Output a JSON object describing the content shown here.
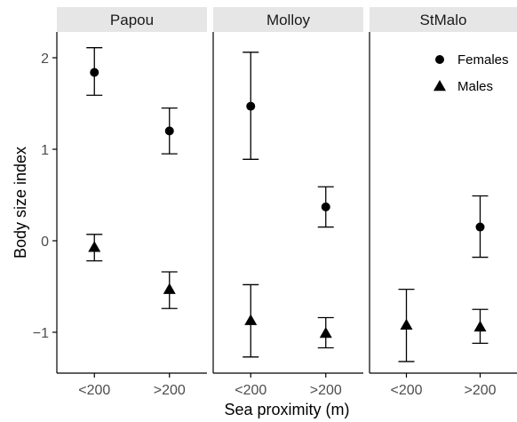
{
  "chart_data": {
    "type": "scatter",
    "subtype": "point-range faceted",
    "xlabel": "Sea proximity (m)",
    "ylabel": "Body size index",
    "categories": [
      "<200",
      ">200"
    ],
    "ylim": [
      -1.5,
      2.35
    ],
    "y_ticks": [
      2,
      1,
      0,
      -1
    ],
    "y_tick_labels": [
      "2",
      "1",
      "0",
      "−1"
    ],
    "grid": false,
    "legend_position": "top-right",
    "facets": [
      {
        "name": "Papou",
        "series": [
          {
            "name": "Females",
            "marker": "circle",
            "points": [
              {
                "x": "<200",
                "y": 1.84,
                "ymin": 1.59,
                "ymax": 2.11
              },
              {
                "x": ">200",
                "y": 1.2,
                "ymin": 0.95,
                "ymax": 1.45
              }
            ]
          },
          {
            "name": "Males",
            "marker": "triangle",
            "points": [
              {
                "x": "<200",
                "y": -0.07,
                "ymin": -0.22,
                "ymax": 0.07
              },
              {
                "x": ">200",
                "y": -0.53,
                "ymin": -0.74,
                "ymax": -0.34
              }
            ]
          }
        ]
      },
      {
        "name": "Molloy",
        "series": [
          {
            "name": "Females",
            "marker": "circle",
            "points": [
              {
                "x": "<200",
                "y": 1.47,
                "ymin": 0.89,
                "ymax": 2.06
              },
              {
                "x": ">200",
                "y": 0.37,
                "ymin": 0.15,
                "ymax": 0.59
              }
            ]
          },
          {
            "name": "Males",
            "marker": "triangle",
            "points": [
              {
                "x": "<200",
                "y": -0.87,
                "ymin": -1.27,
                "ymax": -0.48
              },
              {
                "x": ">200",
                "y": -1.01,
                "ymin": -1.17,
                "ymax": -0.84
              }
            ]
          }
        ]
      },
      {
        "name": "StMalo",
        "series": [
          {
            "name": "Females",
            "marker": "circle",
            "points": [
              {
                "x": ">200",
                "y": 0.15,
                "ymin": -0.18,
                "ymax": 0.49
              }
            ]
          },
          {
            "name": "Males",
            "marker": "triangle",
            "points": [
              {
                "x": "<200",
                "y": -0.92,
                "ymin": -1.32,
                "ymax": -0.53
              },
              {
                "x": ">200",
                "y": -0.94,
                "ymin": -1.12,
                "ymax": -0.75
              }
            ]
          }
        ]
      }
    ],
    "legend": [
      {
        "label": "Females",
        "marker": "circle"
      },
      {
        "label": "Males",
        "marker": "triangle"
      }
    ]
  },
  "colors": {
    "strip_background": "#e6e6e6",
    "points": "#000000",
    "axis": "#000000",
    "tick_text": "#4d4d4d"
  }
}
